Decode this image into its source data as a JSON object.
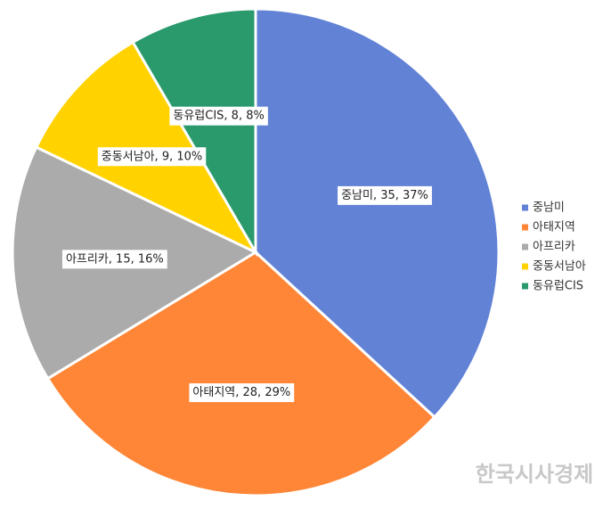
{
  "chart_data": {
    "type": "pie",
    "categories": [
      "중남미",
      "아태지역",
      "아프리카",
      "중동서남아",
      "동유럽CIS"
    ],
    "values": [
      35,
      28,
      15,
      9,
      8
    ],
    "value_labels": [
      "중남미, 35, 37%",
      "아태지역, 28, 29%",
      "아프리카, 15, 16%",
      "중동서남아, 9, 10%",
      "동유럽CIS, 8, 8%"
    ],
    "colors": [
      "#6282d6",
      "#ff8637",
      "#ababab",
      "#ffd200",
      "#2a9a6c"
    ],
    "legend": "right"
  },
  "watermark": "한국시사경제"
}
